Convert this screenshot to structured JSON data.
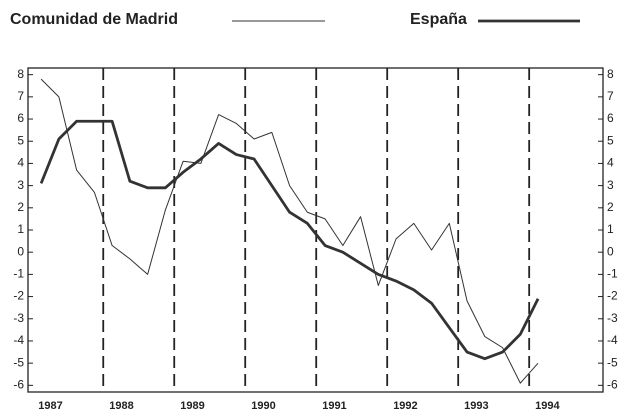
{
  "chart_data": {
    "type": "line",
    "x": [
      1987.125,
      1987.375,
      1987.625,
      1987.875,
      1988.125,
      1988.375,
      1988.625,
      1988.875,
      1989.125,
      1989.375,
      1989.625,
      1989.875,
      1990.125,
      1990.375,
      1990.625,
      1990.875,
      1991.125,
      1991.375,
      1991.625,
      1991.875,
      1992.125,
      1992.375,
      1992.625,
      1992.875,
      1993.125,
      1993.375,
      1993.625,
      1993.875,
      1994.125
    ],
    "series": [
      {
        "name": "Comunidad de Madrid",
        "color": "#333333",
        "line_width": 1,
        "values": [
          7.8,
          7.0,
          3.7,
          2.7,
          0.3,
          -0.3,
          -1.0,
          1.9,
          4.1,
          4.0,
          6.2,
          5.8,
          5.1,
          5.4,
          3.0,
          1.8,
          1.5,
          0.3,
          1.6,
          -1.5,
          0.6,
          1.3,
          0.1,
          1.3,
          -2.2,
          -3.8,
          -4.3,
          -5.9,
          -5.0
        ]
      },
      {
        "name": "España",
        "color": "#333333",
        "line_width": 2.8,
        "values": [
          3.1,
          5.1,
          5.9,
          5.9,
          5.9,
          3.2,
          2.9,
          2.9,
          3.6,
          4.2,
          4.9,
          4.4,
          4.2,
          3.0,
          1.8,
          1.3,
          0.3,
          0.0,
          -0.5,
          -1.0,
          -1.3,
          -1.7,
          -2.3,
          -3.4,
          -4.5,
          -4.8,
          -4.5,
          -3.7,
          -2.1
        ]
      }
    ],
    "xlim": [
      1986.94,
      1995.04
    ],
    "xticks": [
      {
        "value": 1987,
        "label": "1987"
      },
      {
        "value": 1988,
        "label": "1988"
      },
      {
        "value": 1989,
        "label": "1989"
      },
      {
        "value": 1990,
        "label": "1990"
      },
      {
        "value": 1991,
        "label": "1991"
      },
      {
        "value": 1992,
        "label": "1992"
      },
      {
        "value": 1993,
        "label": "1993"
      },
      {
        "value": 1994,
        "label": "1994"
      }
    ],
    "ylim": [
      -6.3,
      8.3
    ],
    "yticks": [
      -6,
      -5,
      -4,
      -3,
      -2,
      -1,
      0,
      1,
      2,
      3,
      4,
      5,
      6,
      7,
      8
    ],
    "legend": "top"
  }
}
